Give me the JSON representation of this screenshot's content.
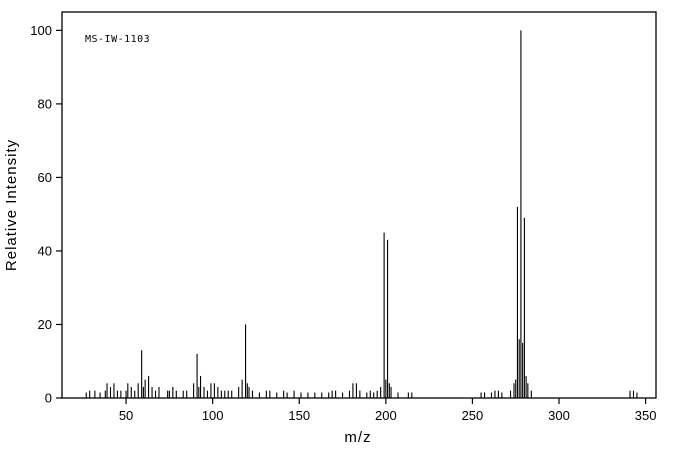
{
  "chart_data": {
    "type": "bar",
    "subtype": "mass-spectrum",
    "annotation": "MS-IW-1103",
    "xlabel": "m/z",
    "ylabel": "Relative Intensity",
    "xlim": [
      13,
      356
    ],
    "ylim": [
      0,
      105
    ],
    "x_ticks": [
      50,
      100,
      150,
      200,
      250,
      300,
      350
    ],
    "y_ticks": [
      0,
      20,
      40,
      60,
      80,
      100
    ],
    "grid": false,
    "legend": "none",
    "peaks": [
      [
        27,
        1.5
      ],
      [
        29,
        2
      ],
      [
        32,
        2
      ],
      [
        35,
        1.5
      ],
      [
        38,
        2
      ],
      [
        39,
        4
      ],
      [
        41,
        3
      ],
      [
        43,
        4
      ],
      [
        45,
        2
      ],
      [
        47,
        2
      ],
      [
        50,
        2
      ],
      [
        51,
        4
      ],
      [
        53,
        3
      ],
      [
        55,
        2
      ],
      [
        57,
        4
      ],
      [
        59,
        13
      ],
      [
        60,
        3
      ],
      [
        61,
        5
      ],
      [
        63,
        6
      ],
      [
        65,
        3
      ],
      [
        67,
        2
      ],
      [
        69,
        3
      ],
      [
        74,
        2
      ],
      [
        75,
        2
      ],
      [
        77,
        3
      ],
      [
        79,
        2
      ],
      [
        83,
        2
      ],
      [
        85,
        2
      ],
      [
        89,
        4
      ],
      [
        91,
        12
      ],
      [
        92,
        3
      ],
      [
        93,
        6
      ],
      [
        95,
        3
      ],
      [
        97,
        2
      ],
      [
        99,
        4
      ],
      [
        101,
        4
      ],
      [
        103,
        3
      ],
      [
        105,
        2
      ],
      [
        107,
        2
      ],
      [
        109,
        2
      ],
      [
        111,
        2
      ],
      [
        115,
        3
      ],
      [
        117,
        5
      ],
      [
        119,
        20
      ],
      [
        120,
        4
      ],
      [
        121,
        3
      ],
      [
        123,
        2
      ],
      [
        127,
        1.5
      ],
      [
        131,
        2
      ],
      [
        133,
        2
      ],
      [
        137,
        1.5
      ],
      [
        141,
        2
      ],
      [
        143,
        1.5
      ],
      [
        147,
        2
      ],
      [
        151,
        1.5
      ],
      [
        155,
        1.5
      ],
      [
        159,
        1.5
      ],
      [
        163,
        1.5
      ],
      [
        167,
        1.5
      ],
      [
        169,
        2
      ],
      [
        171,
        2
      ],
      [
        175,
        1.5
      ],
      [
        179,
        2
      ],
      [
        181,
        4
      ],
      [
        183,
        4
      ],
      [
        185,
        2
      ],
      [
        189,
        1.5
      ],
      [
        191,
        2
      ],
      [
        193,
        1.5
      ],
      [
        195,
        2
      ],
      [
        197,
        3
      ],
      [
        199,
        45
      ],
      [
        200,
        5
      ],
      [
        201,
        43
      ],
      [
        202,
        4
      ],
      [
        203,
        3
      ],
      [
        207,
        1.5
      ],
      [
        213,
        1.5
      ],
      [
        215,
        1.5
      ],
      [
        255,
        1.5
      ],
      [
        257,
        1.5
      ],
      [
        261,
        1.5
      ],
      [
        263,
        2
      ],
      [
        265,
        2
      ],
      [
        267,
        1.5
      ],
      [
        272,
        2
      ],
      [
        274,
        4
      ],
      [
        275,
        5
      ],
      [
        276,
        52
      ],
      [
        277,
        16
      ],
      [
        278,
        100
      ],
      [
        279,
        15
      ],
      [
        280,
        49
      ],
      [
        281,
        6
      ],
      [
        282,
        4
      ],
      [
        284,
        2
      ],
      [
        341,
        2
      ],
      [
        343,
        2
      ],
      [
        345,
        1.5
      ]
    ]
  },
  "colors": {
    "line": "#000000",
    "background": "#ffffff"
  }
}
